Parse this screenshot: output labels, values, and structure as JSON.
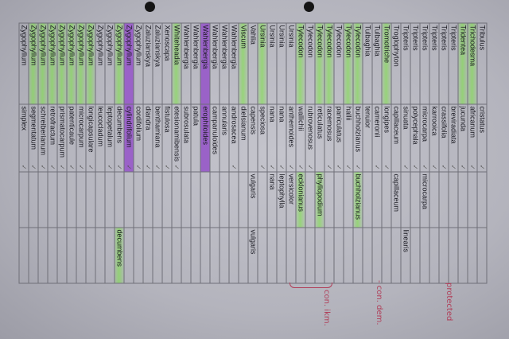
{
  "rows": [
    {
      "genus": "Tribulus",
      "species": "cristatus",
      "col3": "",
      "col4": "",
      "check": "✓",
      "hl": ""
    },
    {
      "genus": "Trichodesma",
      "species": "africanum",
      "col3": "",
      "col4": "",
      "check": "✓",
      "hl": "green"
    },
    {
      "genus": "Tridentea",
      "species": "jucunda",
      "col3": "",
      "col4": "",
      "check": "✓",
      "hl": "green"
    },
    {
      "genus": "Tripteris",
      "species": "breviradiata",
      "col3": "",
      "col4": "",
      "check": "✓",
      "hl": ""
    },
    {
      "genus": "Tripteris",
      "species": "crassifolia",
      "col3": "",
      "col4": "",
      "check": "✓",
      "hl": ""
    },
    {
      "genus": "Tripteris",
      "species": "karrooica",
      "col3": "",
      "col4": "",
      "check": "✓",
      "hl": ""
    },
    {
      "genus": "Tripteris",
      "species": "microcarpa",
      "col3": "microcarpa",
      "col4": "",
      "check": "✓",
      "hl": ""
    },
    {
      "genus": "Tripteris",
      "species": "polycephala",
      "col3": "",
      "col4": "",
      "check": "✓",
      "hl": ""
    },
    {
      "genus": "Tripteris",
      "species": "sinuata",
      "col3": "",
      "col4": "linearis",
      "check": "✓",
      "hl": ""
    },
    {
      "genus": "Troglophyton",
      "species": "capillaceum",
      "col3": "capillaceum",
      "col4": "",
      "check": "",
      "hl": ""
    },
    {
      "genus": "Tromotriche",
      "species": "longipes",
      "col3": "",
      "col4": "",
      "check": "✓",
      "hl": "green"
    },
    {
      "genus": "Tulbaghia",
      "species": "cameronii",
      "col3": "",
      "col4": "",
      "check": "✓",
      "hl": ""
    },
    {
      "genus": "Tulbaghia",
      "species": "tenuior",
      "col3": "",
      "col4": "",
      "check": "",
      "hl": ""
    },
    {
      "genus": "Tylecodon",
      "species": "buchholzianus",
      "col3": "buchholzianus",
      "col4": "",
      "check": "✓",
      "hl": "green"
    },
    {
      "genus": "Tylecodon",
      "species": "hallii",
      "col3": "",
      "col4": "",
      "check": "✓",
      "hl": "green"
    },
    {
      "genus": "Tylecodon",
      "species": "paniculatus",
      "col3": "",
      "col4": "",
      "check": "✓",
      "hl": ""
    },
    {
      "genus": "Tylecodon",
      "species": "racemosus",
      "col3": "",
      "col4": "",
      "check": "✓",
      "hl": "green"
    },
    {
      "genus": "Tylecodon",
      "species": "reticulatus",
      "col3": "phyllopodium",
      "col4": "",
      "check": "",
      "hl": "green"
    },
    {
      "genus": "Tylecodon",
      "species": "rubrovenosus",
      "col3": "",
      "col4": "",
      "check": "✓",
      "hl": ""
    },
    {
      "genus": "Tylecodon",
      "species": "wallichii",
      "col3": "ecklonianus",
      "col4": "",
      "check": "✓",
      "hl": "green"
    },
    {
      "genus": "Ursinia",
      "species": "anthemoides",
      "col3": "versicolor",
      "col4": "",
      "check": "✓",
      "hl": ""
    },
    {
      "genus": "Ursinia",
      "species": "nana",
      "col3": "leptophylla",
      "col4": "",
      "check": "✓",
      "hl": ""
    },
    {
      "genus": "Ursinia",
      "species": "nana",
      "col3": "nana",
      "col4": "",
      "check": "✓",
      "hl": ""
    },
    {
      "genus": "Ursinia",
      "species": "speciosa",
      "col3": "",
      "col4": "",
      "check": "✓",
      "hl": "green"
    },
    {
      "genus": "Vahlia",
      "species": "capensis",
      "col3": "vulgaris",
      "col4": "vulgaris",
      "check": "",
      "hl": ""
    },
    {
      "genus": "Viscum",
      "species": "dielsianum",
      "col3": "",
      "col4": "",
      "check": "",
      "hl": "green"
    },
    {
      "genus": "Wahlenbergia",
      "species": "androsacea",
      "col3": "",
      "col4": "",
      "check": "✓",
      "hl": ""
    },
    {
      "genus": "Wahlenbergia",
      "species": "annularis",
      "col3": "",
      "col4": "",
      "check": "",
      "hl": ""
    },
    {
      "genus": "Wahlenbergia",
      "species": "campanuloides",
      "col3": "",
      "col4": "",
      "check": "",
      "hl": ""
    },
    {
      "genus": "Wahlenbergia",
      "species": "erophiloides",
      "col3": "",
      "col4": "",
      "check": "",
      "hl": "purple"
    },
    {
      "genus": "Wahlenbergia",
      "species": "patula",
      "col3": "",
      "col4": "",
      "check": "",
      "hl": ""
    },
    {
      "genus": "Wahlenbergia",
      "species": "subrosulata",
      "col3": "",
      "col4": "",
      "check": "",
      "hl": ""
    },
    {
      "genus": "Whiteheadia",
      "species": "etesionamibensis",
      "col3": "",
      "col4": "",
      "check": "✓",
      "hl": "green"
    },
    {
      "genus": "Xenoscapa",
      "species": "fistulosa",
      "col3": "",
      "col4": "",
      "check": "✓",
      "hl": ""
    },
    {
      "genus": "Zaluzianskya",
      "species": "benthamiana",
      "col3": "",
      "col4": "",
      "check": "✓",
      "hl": ""
    },
    {
      "genus": "Zaluzianskya",
      "species": "diandra",
      "col3": "",
      "col4": "",
      "check": "✓",
      "hl": ""
    },
    {
      "genus": "Zygophyllum",
      "species": "cordifolium",
      "col3": "",
      "col4": "",
      "check": "✓",
      "hl": ""
    },
    {
      "genus": "Zygophyllum",
      "species": "cylindrifolium",
      "col3": "",
      "col4": "",
      "check": "✓",
      "hl": "purple"
    },
    {
      "genus": "Zygophyllum",
      "species": "decumbens",
      "col3": "",
      "col4": "decumbens",
      "check": "✓",
      "hl": "green"
    },
    {
      "genus": "Zygophyllum",
      "species": "leptopetalum",
      "col3": "",
      "col4": "",
      "check": "✓",
      "hl": ""
    },
    {
      "genus": "Zygophyllum",
      "species": "leucocladum",
      "col3": "",
      "col4": "",
      "check": "",
      "hl": ""
    },
    {
      "genus": "Zygophyllum",
      "species": "longicapsulare",
      "col3": "",
      "col4": "",
      "check": "✓",
      "hl": "green"
    },
    {
      "genus": "Zygophyllum",
      "species": "microcarpum",
      "col3": "",
      "col4": "",
      "check": "✓",
      "hl": "green"
    },
    {
      "genus": "Zygophyllum",
      "species": "patenticaule",
      "col3": "",
      "col4": "",
      "check": "✓",
      "hl": "green"
    },
    {
      "genus": "Zygophyllum",
      "species": "prismatocarpum",
      "col3": "",
      "col4": "",
      "check": "✓",
      "hl": "green"
    },
    {
      "genus": "Zygophyllum",
      "species": "retrofractum",
      "col3": "",
      "col4": "",
      "check": "✓",
      "hl": "green"
    },
    {
      "genus": "Zygophyllum",
      "species": "schreiberianum",
      "col3": "",
      "col4": "",
      "check": "✓",
      "hl": "green"
    },
    {
      "genus": "Zygophyllum",
      "species": "segmentatum",
      "col3": "",
      "col4": "",
      "check": "✓",
      "hl": "green"
    },
    {
      "genus": "Zygophyllum",
      "species": "simplex",
      "col3": "",
      "col4": "",
      "check": "✓",
      "hl": ""
    }
  ],
  "annotations": {
    "protected": "protected",
    "con_dem": "- con. dem.",
    "con_ikm": "con. ikm."
  },
  "colors": {
    "highlight_green": "#78e63c",
    "highlight_purple": "#9a62c8",
    "ink_red": "#b0405a"
  }
}
